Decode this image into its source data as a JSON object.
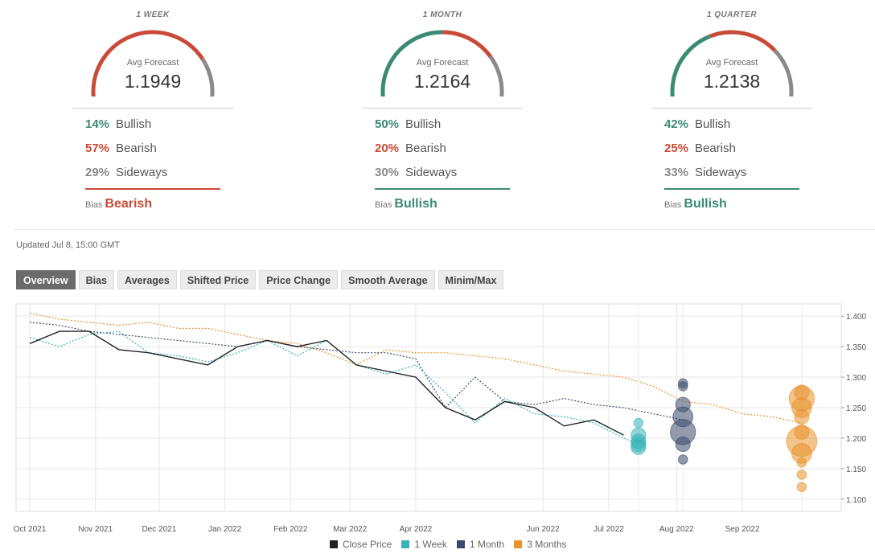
{
  "forecasts": [
    {
      "period": "1 WEEK",
      "avg_label": "Avg Forecast",
      "avg_value": "1.1949",
      "bullish_pct": "14%",
      "bullish_label": "Bullish",
      "bearish_pct": "57%",
      "bearish_label": "Bearish",
      "sideways_pct": "29%",
      "sideways_label": "Sideways",
      "bias_label": "Bias",
      "bias_value": "Bearish",
      "bias_color": "#c94a38",
      "gauge": {
        "bullish": 0.14,
        "bearish": 0.57,
        "sideways": 0.29
      }
    },
    {
      "period": "1 MONTH",
      "avg_label": "Avg Forecast",
      "avg_value": "1.2164",
      "bullish_pct": "50%",
      "bullish_label": "Bullish",
      "bearish_pct": "20%",
      "bearish_label": "Bearish",
      "sideways_pct": "30%",
      "sideways_label": "Sideways",
      "bias_label": "Bias",
      "bias_value": "Bullish",
      "bias_color": "#3b8a73",
      "gauge": {
        "bullish": 0.5,
        "bearish": 0.2,
        "sideways": 0.3
      }
    },
    {
      "period": "1 QUARTER",
      "avg_label": "Avg Forecast",
      "avg_value": "1.2138",
      "bullish_pct": "42%",
      "bullish_label": "Bullish",
      "bearish_pct": "25%",
      "bearish_label": "Bearish",
      "sideways_pct": "33%",
      "sideways_label": "Sideways",
      "bias_label": "Bias",
      "bias_value": "Bullish",
      "bias_color": "#3b8a73",
      "gauge": {
        "bullish": 0.42,
        "bearish": 0.25,
        "sideways": 0.33
      }
    }
  ],
  "colors": {
    "bullish": "#3b8a73",
    "bearish": "#c94a38",
    "sideways": "#8a8a8a"
  },
  "updated": "Updated Jul 8, 15:00 GMT",
  "tabs": [
    "Overview",
    "Bias",
    "Averages",
    "Shifted Price",
    "Price Change",
    "Smooth Average",
    "Minim/Max"
  ],
  "active_tab": "Overview",
  "chart_data": {
    "type": "line",
    "x_ticks": [
      "Oct 2021",
      "Nov 2021",
      "Dec 2021",
      "Jan 2022",
      "Feb 2022",
      "Mar 2022",
      "Apr 2022",
      "Jun 2022",
      "Jul 2022",
      "Aug 2022",
      "Sep 2022"
    ],
    "y_ticks": [
      "1.100",
      "1.150",
      "1.200",
      "1.250",
      "1.300",
      "1.350",
      "1.400"
    ],
    "ylim": [
      1.08,
      1.42
    ],
    "grid": true,
    "legend_position": "bottom",
    "series": [
      {
        "name": "Close Price",
        "color": "#222222",
        "style": "solid",
        "x": [
          "2021-10-01",
          "2021-10-15",
          "2021-10-29",
          "2021-11-12",
          "2021-11-26",
          "2021-12-10",
          "2021-12-24",
          "2022-01-07",
          "2022-01-21",
          "2022-02-04",
          "2022-02-18",
          "2022-03-04",
          "2022-03-18",
          "2022-04-01",
          "2022-04-15",
          "2022-04-29",
          "2022-05-13",
          "2022-05-27",
          "2022-06-10",
          "2022-06-24",
          "2022-07-08"
        ],
        "y": [
          1.355,
          1.375,
          1.375,
          1.345,
          1.34,
          1.33,
          1.32,
          1.35,
          1.36,
          1.35,
          1.36,
          1.32,
          1.31,
          1.3,
          1.25,
          1.23,
          1.26,
          1.25,
          1.22,
          1.23,
          1.205
        ]
      },
      {
        "name": "1 Week",
        "color": "#37b3b8",
        "style": "dotted",
        "x": [
          "2021-10-01",
          "2021-10-15",
          "2021-10-29",
          "2021-11-12",
          "2021-11-26",
          "2021-12-10",
          "2021-12-24",
          "2022-01-07",
          "2022-01-21",
          "2022-02-04",
          "2022-02-18",
          "2022-03-04",
          "2022-03-18",
          "2022-04-01",
          "2022-04-15",
          "2022-04-29",
          "2022-05-13",
          "2022-05-27",
          "2022-06-10",
          "2022-06-24",
          "2022-07-08",
          "2022-07-15"
        ],
        "y": [
          1.365,
          1.35,
          1.37,
          1.375,
          1.34,
          1.335,
          1.325,
          1.34,
          1.36,
          1.335,
          1.36,
          1.32,
          1.305,
          1.32,
          1.275,
          1.225,
          1.265,
          1.24,
          1.235,
          1.225,
          1.2,
          1.19
        ]
      },
      {
        "name": "1 Month",
        "color": "#3b4a6b",
        "style": "dotted",
        "x": [
          "2021-10-01",
          "2021-10-15",
          "2021-10-29",
          "2021-11-12",
          "2021-11-26",
          "2021-12-10",
          "2021-12-24",
          "2022-01-07",
          "2022-01-21",
          "2022-02-04",
          "2022-02-18",
          "2022-03-04",
          "2022-03-18",
          "2022-04-01",
          "2022-04-15",
          "2022-04-29",
          "2022-05-13",
          "2022-05-27",
          "2022-06-10",
          "2022-06-24",
          "2022-07-08",
          "2022-07-22",
          "2022-08-05"
        ],
        "y": [
          1.39,
          1.385,
          1.375,
          1.37,
          1.365,
          1.36,
          1.355,
          1.35,
          1.36,
          1.35,
          1.345,
          1.34,
          1.34,
          1.33,
          1.25,
          1.3,
          1.26,
          1.255,
          1.265,
          1.255,
          1.25,
          1.24,
          1.23
        ]
      },
      {
        "name": "3 Months",
        "color": "#e8922a",
        "style": "dotted",
        "x": [
          "2021-10-01",
          "2021-10-15",
          "2021-10-29",
          "2021-11-12",
          "2021-11-26",
          "2021-12-10",
          "2021-12-24",
          "2022-01-07",
          "2022-01-21",
          "2022-02-04",
          "2022-02-18",
          "2022-03-04",
          "2022-03-18",
          "2022-04-01",
          "2022-04-15",
          "2022-04-29",
          "2022-05-13",
          "2022-05-27",
          "2022-06-10",
          "2022-06-24",
          "2022-07-08",
          "2022-07-22",
          "2022-08-05",
          "2022-08-19",
          "2022-09-02",
          "2022-09-16",
          "2022-09-30"
        ],
        "y": [
          1.405,
          1.395,
          1.39,
          1.385,
          1.39,
          1.38,
          1.38,
          1.37,
          1.36,
          1.355,
          1.34,
          1.32,
          1.345,
          1.34,
          1.34,
          1.335,
          1.33,
          1.32,
          1.31,
          1.305,
          1.3,
          1.285,
          1.26,
          1.255,
          1.24,
          1.235,
          1.225
        ]
      }
    ],
    "bubbles": [
      {
        "series": "1 Week",
        "color": "#37b3b8",
        "date": "2022-07-15",
        "points": [
          {
            "y": 1.225,
            "size": 1
          },
          {
            "y": 1.205,
            "size": 2
          },
          {
            "y": 1.195,
            "size": 2
          },
          {
            "y": 1.19,
            "size": 2
          },
          {
            "y": 1.185,
            "size": 2
          }
        ]
      },
      {
        "series": "1 Month",
        "color": "#3b4a6b",
        "date": "2022-08-05",
        "points": [
          {
            "y": 1.29,
            "size": 1
          },
          {
            "y": 1.285,
            "size": 1
          },
          {
            "y": 1.255,
            "size": 2
          },
          {
            "y": 1.235,
            "size": 3
          },
          {
            "y": 1.21,
            "size": 4
          },
          {
            "y": 1.19,
            "size": 2
          },
          {
            "y": 1.165,
            "size": 1
          }
        ]
      },
      {
        "series": "3 Months",
        "color": "#e8922a",
        "date": "2022-09-30",
        "points": [
          {
            "y": 1.275,
            "size": 2
          },
          {
            "y": 1.265,
            "size": 4
          },
          {
            "y": 1.25,
            "size": 3
          },
          {
            "y": 1.235,
            "size": 2
          },
          {
            "y": 1.21,
            "size": 2
          },
          {
            "y": 1.195,
            "size": 5
          },
          {
            "y": 1.175,
            "size": 3
          },
          {
            "y": 1.16,
            "size": 1
          },
          {
            "y": 1.14,
            "size": 1
          },
          {
            "y": 1.12,
            "size": 1
          }
        ]
      }
    ]
  },
  "legend": [
    {
      "label": "Close Price",
      "color": "#222222"
    },
    {
      "label": "1 Week",
      "color": "#37b3b8"
    },
    {
      "label": "1 Month",
      "color": "#3b4a6b"
    },
    {
      "label": "3 Months",
      "color": "#e8922a"
    }
  ]
}
